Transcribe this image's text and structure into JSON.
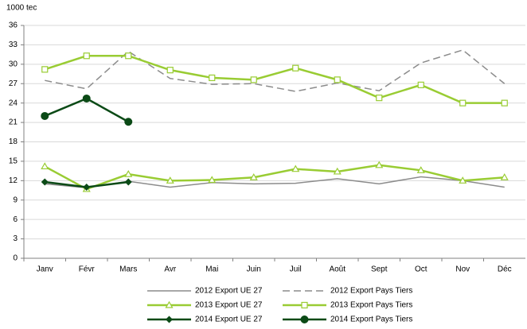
{
  "chart_data": {
    "type": "line",
    "y_label": "1000 tec",
    "categories": [
      "Janv",
      "Févr",
      "Mars",
      "Avr",
      "Mai",
      "Juin",
      "Juil",
      "Août",
      "Sept",
      "Oct",
      "Nov",
      "Déc"
    ],
    "ylim": [
      0,
      36
    ],
    "yticks": [
      0,
      3,
      6,
      9,
      12,
      15,
      18,
      21,
      24,
      27,
      30,
      33,
      36
    ],
    "grid": true,
    "legend": "bottom",
    "series": [
      {
        "name": "2012 Export UE 27",
        "color": "#8c8c8c",
        "dashed": false,
        "marker": "none",
        "values": [
          11.5,
          10.9,
          11.9,
          11.0,
          11.7,
          11.5,
          11.6,
          12.3,
          11.5,
          12.6,
          12.0,
          11.0
        ]
      },
      {
        "name": "2012 Export Pays Tiers",
        "color": "#8c8c8c",
        "dashed": true,
        "marker": "none",
        "values": [
          27.5,
          26.2,
          32.0,
          27.8,
          26.9,
          27.0,
          25.8,
          27.1,
          25.9,
          30.2,
          32.2,
          27.0
        ]
      },
      {
        "name": "2013 Export UE 27",
        "color": "#99cc33",
        "dashed": false,
        "marker": "triangle",
        "values": [
          14.2,
          10.7,
          13.0,
          12.0,
          12.1,
          12.5,
          13.8,
          13.4,
          14.4,
          13.6,
          12.0,
          12.5
        ]
      },
      {
        "name": "2013 Export Pays Tiers",
        "color": "#99cc33",
        "dashed": false,
        "marker": "square",
        "values": [
          29.2,
          31.3,
          31.3,
          29.1,
          27.9,
          27.6,
          29.4,
          27.6,
          24.8,
          26.8,
          24.0,
          24.0
        ]
      },
      {
        "name": "2014 Export UE 27",
        "color": "#0b4a16",
        "dashed": false,
        "marker": "diamond",
        "values": [
          11.8,
          11.0,
          11.8,
          null,
          null,
          null,
          null,
          null,
          null,
          null,
          null,
          null
        ]
      },
      {
        "name": "2014 Export Pays Tiers",
        "color": "#0b4a16",
        "dashed": false,
        "marker": "circle",
        "values": [
          22.0,
          24.7,
          21.1,
          null,
          null,
          null,
          null,
          null,
          null,
          null,
          null,
          null
        ]
      }
    ]
  }
}
